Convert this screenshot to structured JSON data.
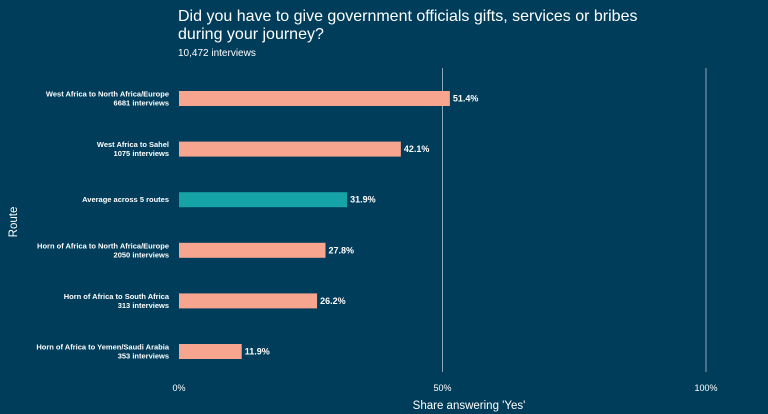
{
  "chart_data": {
    "type": "bar",
    "orientation": "horizontal",
    "title": "Did you have to give government officials gifts, services or bribes during your journey?",
    "subtitle": "10,472 interviews",
    "xlabel": "Share answering 'Yes'",
    "ylabel": "Route",
    "xlim": [
      0,
      100
    ],
    "x_ticks": [
      "0%",
      "50%",
      "100%"
    ],
    "grid": "vertical major gridlines",
    "categories": [
      [
        "West Africa to North Africa/Europe",
        "6681 interviews"
      ],
      [
        "West Africa to Sahel",
        "1075 interviews"
      ],
      [
        "Average across 5 routes"
      ],
      [
        "Horn of Africa to North Africa/Europe",
        "2050 interviews"
      ],
      [
        "Horn of Africa to South Africa",
        "313 interviews"
      ],
      [
        "Horn of Africa to Yemen/Saudi Arabia",
        "353 interviews"
      ]
    ],
    "values": [
      51.4,
      42.1,
      31.9,
      27.8,
      26.2,
      11.9
    ],
    "value_labels": [
      "51.4%",
      "42.1%",
      "31.9%",
      "27.8%",
      "26.2%",
      "11.9%"
    ],
    "highlight_index": 2,
    "colors": {
      "background": "#003d5b",
      "bar": "#f7a58f",
      "highlight_bar": "#16a3a8",
      "gridline": "#8ea7b6",
      "text": "#ffffff"
    }
  }
}
